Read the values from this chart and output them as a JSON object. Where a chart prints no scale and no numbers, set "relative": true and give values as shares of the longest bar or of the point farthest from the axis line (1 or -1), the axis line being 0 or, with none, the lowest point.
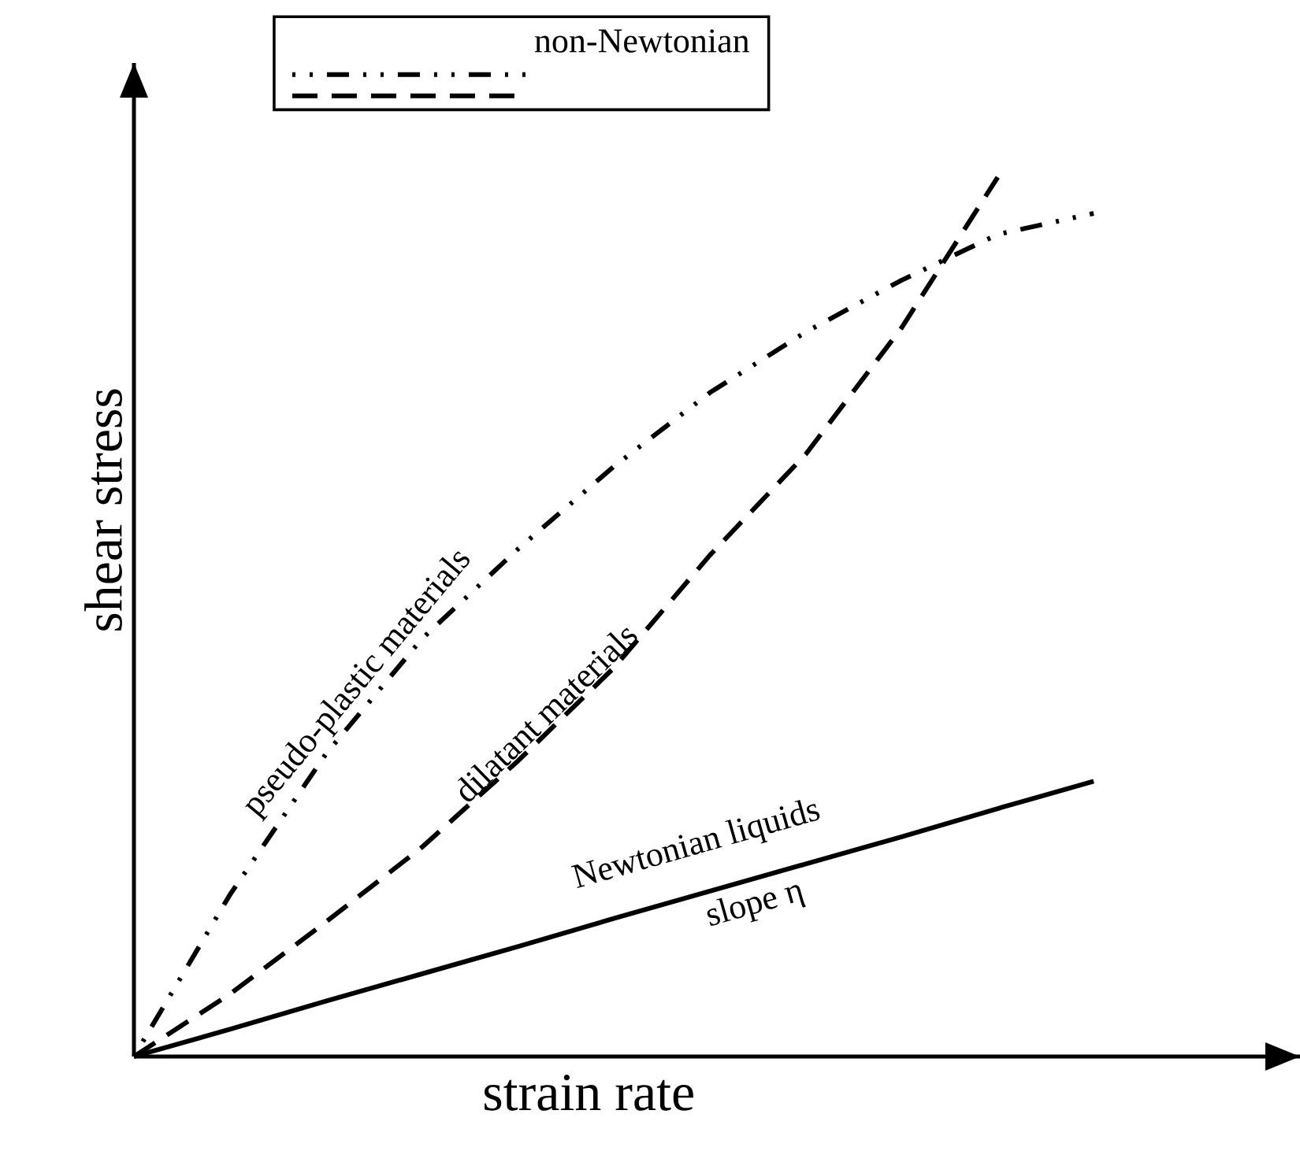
{
  "chart_data": {
    "type": "line",
    "relative": true,
    "xlabel": "strain rate",
    "ylabel": "shear stress",
    "legend_title": "non-Newtonian",
    "marker": "none",
    "annotations": [
      "slope η"
    ],
    "categories": [
      null,
      null,
      null,
      null,
      null,
      null,
      null,
      null,
      null,
      null,
      null
    ],
    "series": [
      {
        "name": "Newtonian liquids",
        "color": "#000000",
        "line_style": "solid",
        "values": [
          0,
          0.031,
          0.063,
          0.094,
          0.125,
          0.157,
          0.188,
          0.219,
          0.25,
          0.282,
          0.313
        ]
      },
      {
        "name": "pseudo-plastic materials",
        "color": "#000000",
        "line_style": "dashdotdot",
        "values": [
          0,
          0.184,
          0.344,
          0.475,
          0.577,
          0.671,
          0.755,
          0.824,
          0.883,
          0.935,
          0.959
        ]
      },
      {
        "name": "dilatant materials",
        "color": "#000000",
        "line_style": "dashed",
        "values": [
          0,
          0.071,
          0.153,
          0.238,
          0.336,
          0.442,
          0.57,
          0.685,
          0.829,
          1.0,
          null
        ]
      }
    ]
  }
}
